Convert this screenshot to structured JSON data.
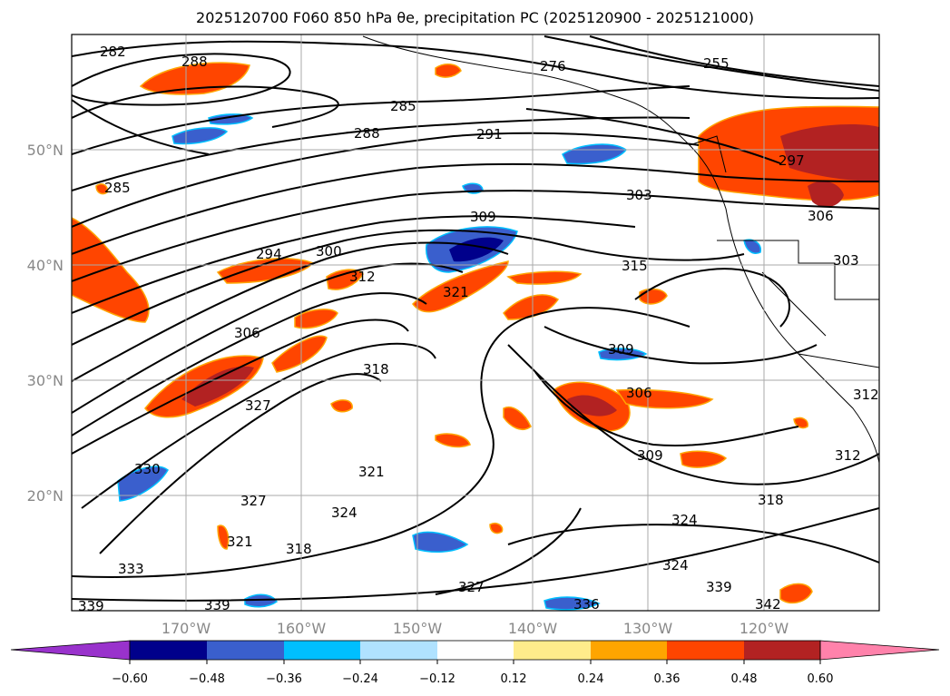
{
  "title": "2025120700 F060 850 hPa θe, precipitation PC (2025120900 - 2025121000)",
  "axes": {
    "lon_ticks": [
      "170°W",
      "160°W",
      "150°W",
      "140°W",
      "130°W",
      "120°W"
    ],
    "lat_ticks": [
      "50°N",
      "40°N",
      "30°N",
      "20°N"
    ]
  },
  "contour_labels": [
    "282",
    "288",
    "285",
    "288",
    "291",
    "276",
    "255",
    "297",
    "303",
    "309",
    "315",
    "294",
    "300",
    "312",
    "321",
    "306",
    "318",
    "327",
    "309",
    "306",
    "309",
    "312",
    "330",
    "327",
    "324",
    "321",
    "321",
    "318",
    "333",
    "339",
    "327",
    "336",
    "324",
    "339",
    "342",
    "339",
    "306",
    "318",
    "324",
    "303",
    "285",
    "312"
  ],
  "colorbar": {
    "ticks": [
      "−0.60",
      "−0.48",
      "−0.36",
      "−0.24",
      "−0.12",
      "0.12",
      "0.24",
      "0.36",
      "0.48",
      "0.60"
    ],
    "colors": [
      "#9932cc",
      "#00008b",
      "#3a5fcd",
      "#00bfff",
      "#b0e2ff",
      "#ffffff",
      "#ffec8b",
      "#ffa500",
      "#ff4500",
      "#b22222",
      "#ff82ab"
    ]
  }
}
